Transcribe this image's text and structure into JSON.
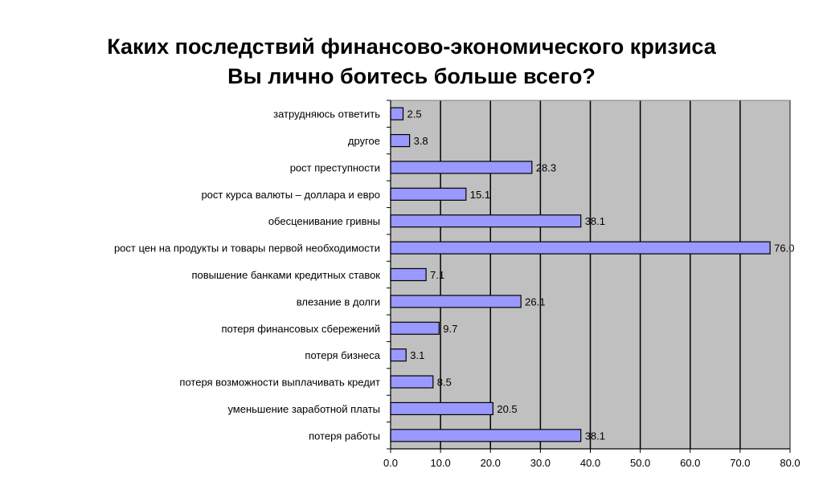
{
  "title": {
    "line1": "Каких последствий финансово-экономического кризиса",
    "line2": "Вы лично боитесь больше всего?"
  },
  "chart_data": {
    "type": "bar",
    "orientation": "horizontal",
    "categories": [
      "затрудняюсь ответить",
      "другое",
      "рост преступности",
      "рост курса валюты – доллара и евро",
      "обесценивание гривны",
      "рост цен на продукты и товары первой необходимости",
      "повышение банками кредитных ставок",
      "влезание в долги",
      "потеря финансовых  сбережений",
      "потеря бизнеса",
      "потеря возможности выплачивать кредит",
      "уменьшение заработной платы",
      "потеря работы"
    ],
    "values": [
      2.5,
      3.8,
      28.3,
      15.1,
      38.1,
      76.0,
      7.1,
      26.1,
      9.7,
      3.1,
      8.5,
      20.5,
      38.1
    ],
    "value_labels": [
      "2.5",
      "3.8",
      "28.3",
      "15.1",
      "38.1",
      "76.0",
      "7.1",
      "26.1",
      "9.7",
      "3.1",
      "8.5",
      "20.5",
      "38.1"
    ],
    "xlim": [
      0,
      80
    ],
    "x_ticks": [
      "0.0",
      "10.0",
      "20.0",
      "30.0",
      "40.0",
      "50.0",
      "60.0",
      "70.0",
      "80.0"
    ],
    "grid": true,
    "legend": "none",
    "colors": {
      "bar_fill": "#9999ff",
      "bar_stroke": "#000000",
      "plot_background": "#c0c0c0",
      "gridline": "#000000"
    }
  }
}
